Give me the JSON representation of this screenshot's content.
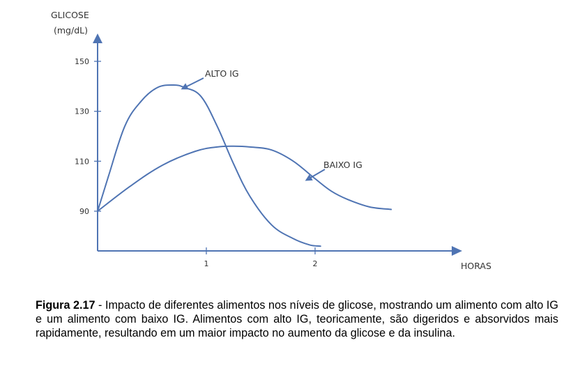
{
  "chart_data": {
    "type": "line",
    "ylabel": [
      "GLICOSE",
      "(mg/dL)"
    ],
    "xlabel": "HORAS",
    "ylim": [
      75,
      155
    ],
    "xlim": [
      0,
      3.3
    ],
    "yticks": [
      90,
      110,
      130,
      150
    ],
    "xticks": [
      1,
      2
    ],
    "grid": false,
    "legend": "none",
    "series": [
      {
        "name": "ALTO IG",
        "x": [
          0,
          0.1,
          0.25,
          0.4,
          0.55,
          0.7,
          0.8,
          0.95,
          1.1,
          1.25,
          1.4,
          1.6,
          1.8,
          1.95,
          2.05
        ],
        "y": [
          90,
          104,
          124,
          134,
          139.5,
          140.5,
          139.5,
          136,
          124,
          109,
          96,
          84.5,
          79,
          76.5,
          76
        ]
      },
      {
        "name": "BAIXO IG",
        "x": [
          0,
          0.3,
          0.6,
          0.9,
          1.1,
          1.25,
          1.4,
          1.6,
          1.8,
          2.0,
          2.15,
          2.3,
          2.5,
          2.7
        ],
        "y": [
          90,
          100,
          108.5,
          114,
          115.7,
          116,
          115.7,
          114.5,
          110,
          103,
          98,
          94.7,
          91.7,
          90.7
        ]
      }
    ],
    "annotations": [
      {
        "text": "ALTO IG",
        "series": "ALTO IG"
      },
      {
        "text": "BAIXO IG",
        "series": "BAIXO IG"
      }
    ],
    "colors": {
      "line": "#4f74b3",
      "axis": "#4f74b3",
      "text": "#333333"
    }
  },
  "caption": {
    "label": "Figura 2.17",
    "text": " - Impacto de diferentes alimentos nos níveis de glicose, mostrando um alimento com alto IG e um alimento com baixo IG. Alimentos com alto IG, teoricamente, são digeridos e absorvidos mais rapidamente, resultando em um maior impacto no aumento da glicose e da insulina."
  }
}
